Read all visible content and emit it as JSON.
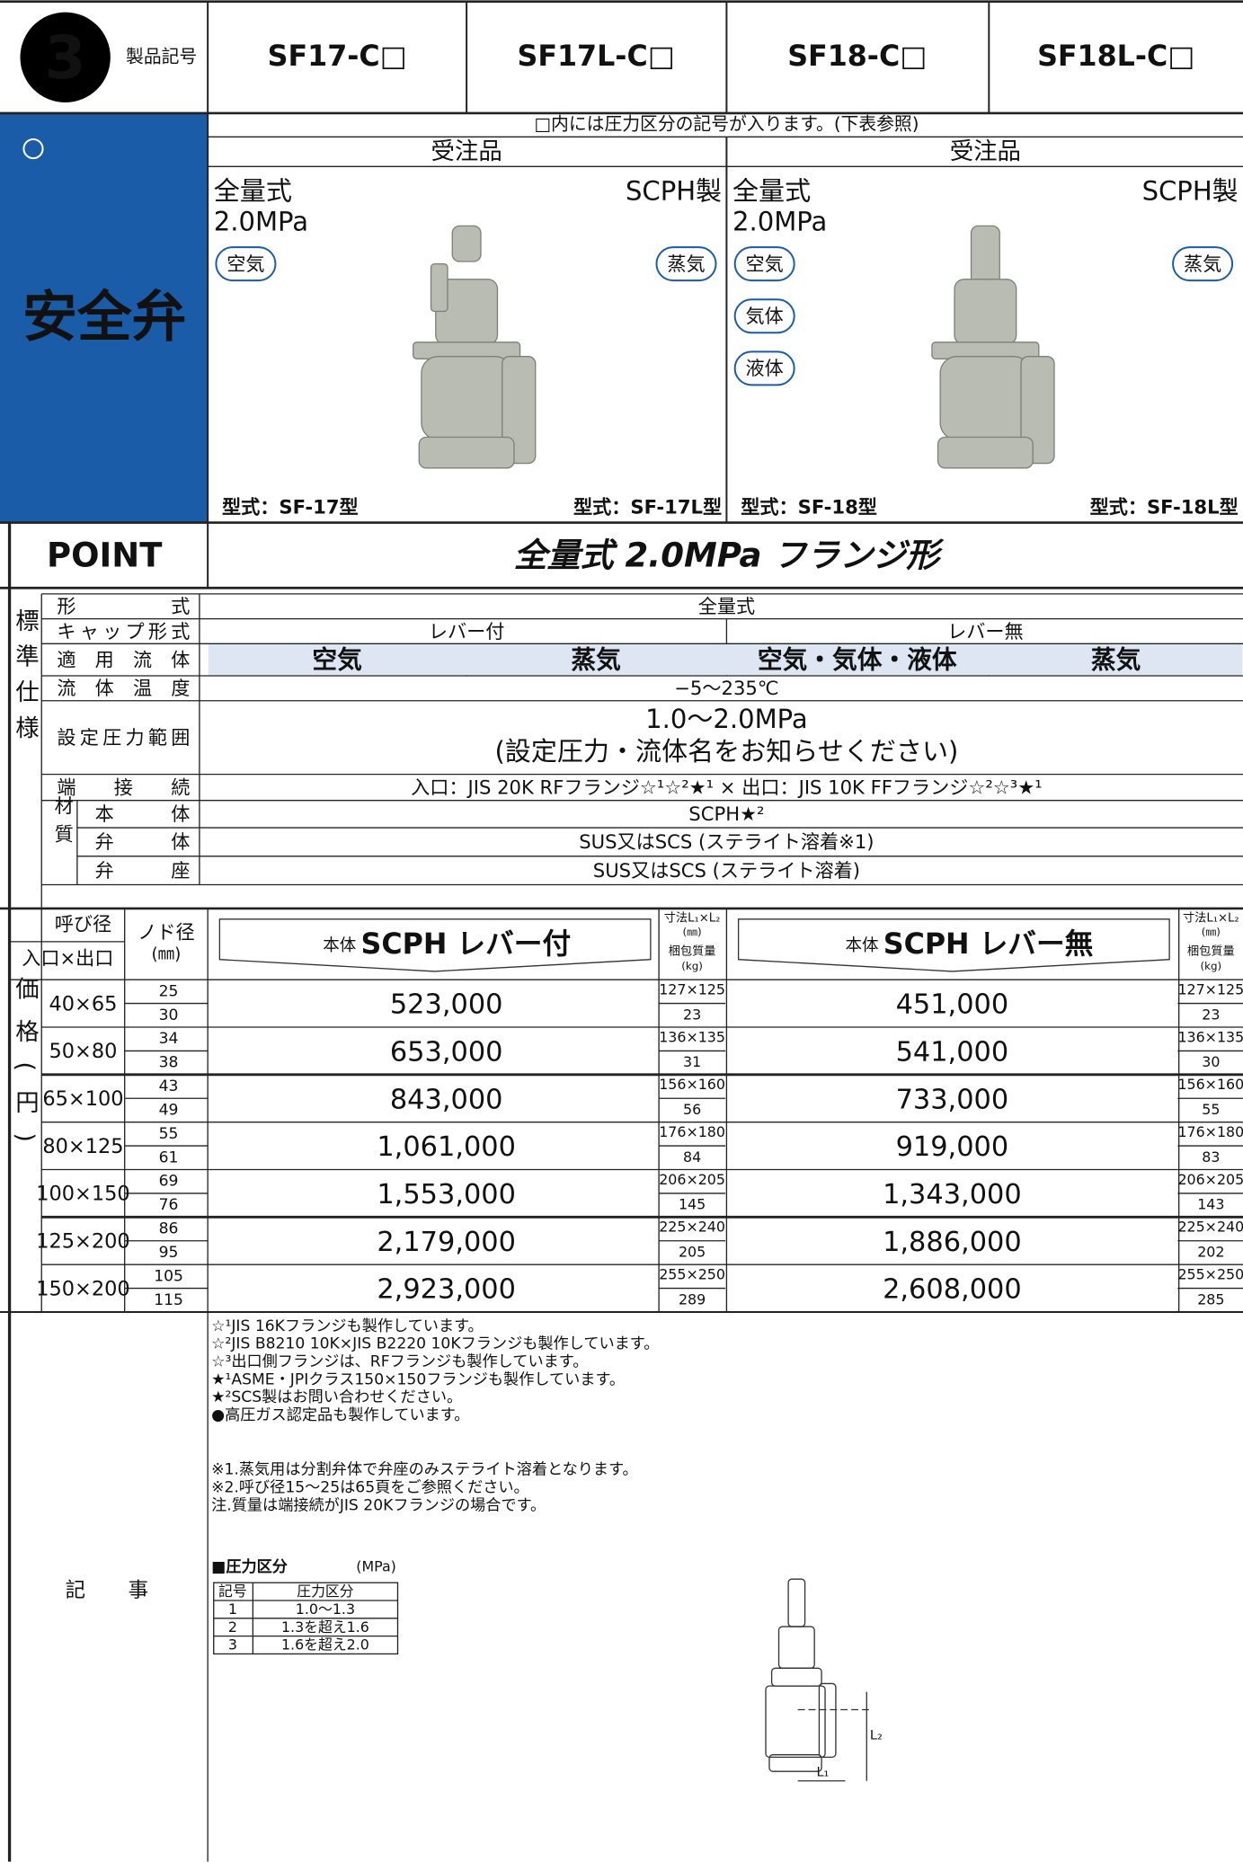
{
  "header": {
    "badge": "3",
    "label": "製品記号",
    "models": [
      "SF17-C□",
      "SF17L-C□",
      "SF18-C□",
      "SF18L-C□"
    ]
  },
  "category": "安全弁",
  "notice": "□内には圧力区分の記号が入ります。(下表参照)",
  "order": [
    "受注品",
    "受注品"
  ],
  "products": [
    {
      "type": "全量式",
      "pressure": "2.0MPa",
      "material": "SCPH製",
      "fluids_left": [
        "空気"
      ],
      "fluids_right": [
        "蒸気"
      ],
      "models": [
        "型式：SF-17型",
        "型式：SF-17L型"
      ]
    },
    {
      "type": "全量式",
      "pressure": "2.0MPa",
      "material": "SCPH製",
      "fluids_left": [
        "空気",
        "気体",
        "液体"
      ],
      "fluids_right": [
        "蒸気"
      ],
      "models": [
        "型式：SF-18型",
        "型式：SF-18L型"
      ]
    }
  ],
  "point": {
    "label": "POINT",
    "text": "全量式 2.0MPa フランジ形"
  },
  "spec": {
    "side": "標準仕様",
    "rows": [
      {
        "label": "形式",
        "values": [
          "全量式"
        ]
      },
      {
        "label": "キャップ形式",
        "values": [
          "レバー付",
          "レバー無"
        ]
      },
      {
        "label": "適用流体",
        "values": [
          "空気",
          "蒸気",
          "空気・気体・液体",
          "蒸気"
        ]
      },
      {
        "label": "流体温度",
        "values": [
          "−5〜235℃"
        ]
      },
      {
        "label": "設定圧力範囲",
        "values": [
          "1.0〜2.0MPa",
          "(設定圧力・流体名をお知らせください)"
        ]
      },
      {
        "label": "端接続",
        "values": [
          "入口：JIS 20K RFフランジ☆¹☆²★¹ × 出口：JIS 10K FFフランジ☆²☆³★¹"
        ]
      }
    ],
    "material": {
      "label": "材質",
      "rows": [
        {
          "label": "本体",
          "value": "SCPH★²"
        },
        {
          "label": "弁体",
          "value": "SUS又はSCS (ステライト溶着※1)"
        },
        {
          "label": "弁座",
          "value": "SUS又はSCS (ステライト溶着)"
        }
      ]
    }
  },
  "prices": {
    "side": "価格(円)",
    "headers": {
      "size": "呼び径",
      "size_sub": "入口×出口",
      "throat": "ノド径",
      "throat_unit": "(㎜)",
      "body": "本体",
      "left": "SCPH レバー付",
      "right": "SCPH レバー無",
      "dims": "寸法L₁×L₂",
      "dims_unit": "(㎜)",
      "weight": "梱包質量",
      "weight_unit": "(kg)"
    },
    "rows": [
      {
        "size": "40×65",
        "throat": [
          "25",
          "30"
        ],
        "left": {
          "price": "523,000",
          "dims": "127×125",
          "weight": "23"
        },
        "right": {
          "price": "451,000",
          "dims": "127×125",
          "weight": "23"
        }
      },
      {
        "size": "50×80",
        "throat": [
          "34",
          "38"
        ],
        "left": {
          "price": "653,000",
          "dims": "136×135",
          "weight": "31"
        },
        "right": {
          "price": "541,000",
          "dims": "136×135",
          "weight": "30"
        }
      },
      {
        "size": "65×100",
        "throat": [
          "43",
          "49"
        ],
        "left": {
          "price": "843,000",
          "dims": "156×160",
          "weight": "56"
        },
        "right": {
          "price": "733,000",
          "dims": "156×160",
          "weight": "55"
        }
      },
      {
        "size": "80×125",
        "throat": [
          "55",
          "61"
        ],
        "left": {
          "price": "1,061,000",
          "dims": "176×180",
          "weight": "84"
        },
        "right": {
          "price": "919,000",
          "dims": "176×180",
          "weight": "83"
        }
      },
      {
        "size": "100×150",
        "throat": [
          "69",
          "76"
        ],
        "left": {
          "price": "1,553,000",
          "dims": "206×205",
          "weight": "145"
        },
        "right": {
          "price": "1,343,000",
          "dims": "206×205",
          "weight": "143"
        }
      },
      {
        "size": "125×200",
        "throat": [
          "86",
          "95"
        ],
        "left": {
          "price": "2,179,000",
          "dims": "225×240",
          "weight": "205"
        },
        "right": {
          "price": "1,886,000",
          "dims": "225×240",
          "weight": "202"
        }
      },
      {
        "size": "150×200",
        "throat": [
          "105",
          "115"
        ],
        "left": {
          "price": "2,923,000",
          "dims": "255×250",
          "weight": "289"
        },
        "right": {
          "price": "2,608,000",
          "dims": "255×250",
          "weight": "285"
        }
      }
    ]
  },
  "memo": {
    "label": "記事",
    "marks": [
      "☆¹JIS 16Kフランジも製作しています。",
      "☆²JIS B8210 10K×JIS B2220 10Kフランジも製作しています。",
      "☆³出口側フランジは、RFフランジも製作しています。",
      "★¹ASME・JPIクラス150×150フランジも製作しています。",
      "★²SCS製はお問い合わせください。",
      "●高圧ガス認定品も製作しています。"
    ],
    "remarks": [
      "※1.蒸気用は分割弁体で弁座のみステライト溶着となります。",
      "※2.呼び径15〜25は65頁をご参照ください。",
      "注.質量は端接続がJIS 20Kフランジの場合です。"
    ]
  },
  "pressure_table": {
    "title": "■圧力区分",
    "unit": "(MPa)",
    "headers": [
      "記号",
      "圧力区分"
    ],
    "rows": [
      [
        "1",
        "1.0〜1.3"
      ],
      [
        "2",
        "1.3を超え1.6"
      ],
      [
        "3",
        "1.6を超え2.0"
      ]
    ]
  },
  "diagram": {
    "labels": [
      "L₁",
      "L₂"
    ]
  }
}
